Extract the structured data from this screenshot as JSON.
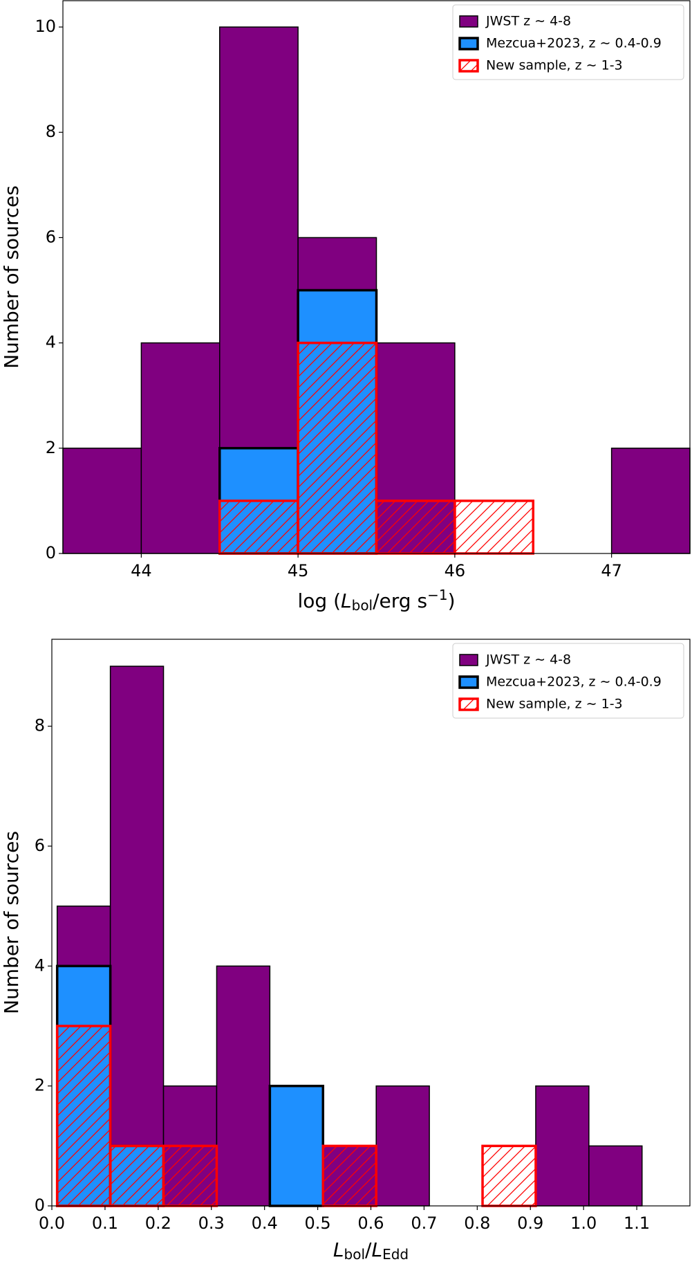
{
  "chart_data": [
    {
      "type": "histogram",
      "xlabel": [
        "log (",
        "L",
        "bol",
        "/erg s",
        "−1",
        ")"
      ],
      "ylabel": "Number of sources",
      "xlim": [
        43.5,
        47.5
      ],
      "ylim": [
        0,
        10.5
      ],
      "xticks": [
        44,
        45,
        46,
        47
      ],
      "yticks": [
        0,
        2,
        4,
        6,
        8,
        10
      ],
      "legend": "upper right",
      "series": [
        {
          "name": "JWST z ∼ 4-8",
          "color": "#800080",
          "edgecolor": "#000000",
          "hatch": false,
          "bins": [
            43.5,
            44,
            44.5,
            45,
            45.5,
            46,
            46.5,
            47,
            47.5
          ],
          "values": [
            2,
            4,
            10,
            6,
            4,
            0,
            0,
            2
          ]
        },
        {
          "name": "Mezcua+2023, z ∼ 0.4-0.9",
          "color": "#1e90ff",
          "edgecolor": "#000000",
          "hatch": false,
          "bins": [
            44.5,
            45,
            45.5
          ],
          "values": [
            2,
            5
          ]
        },
        {
          "name": "New sample, z ∼ 1-3",
          "color": "#ff0000",
          "edgecolor": "#ff0000",
          "hatch": true,
          "bins": [
            44.5,
            45,
            45.5,
            46,
            46.5,
            47
          ],
          "values": [
            1,
            4,
            1,
            1,
            0
          ]
        }
      ]
    },
    {
      "type": "histogram",
      "xlabel": [
        "L",
        "bol",
        "/",
        "L",
        "Edd"
      ],
      "ylabel": "Number of sources",
      "xlim": [
        0,
        1.2
      ],
      "ylim": [
        0,
        9.45
      ],
      "xticks": [
        {
          "value": 0,
          "label": "0.0"
        },
        0.1,
        0.2,
        0.3,
        0.4,
        0.5,
        0.6,
        0.7,
        0.8,
        0.9,
        {
          "value": 1,
          "label": "1.0"
        },
        1.1
      ],
      "yticks": [
        0,
        2,
        4,
        6,
        8
      ],
      "legend": "upper right",
      "series": [
        {
          "name": "JWST z ∼ 4-8",
          "color": "#800080",
          "edgecolor": "#000000",
          "hatch": false,
          "bins": [
            0.01,
            0.11,
            0.21,
            0.31,
            0.41,
            0.51,
            0.61,
            0.71,
            0.81,
            0.91,
            1.01,
            1.11
          ],
          "values": [
            5,
            9,
            2,
            4,
            0,
            1,
            2,
            0,
            0,
            2,
            1
          ]
        },
        {
          "name": "Mezcua+2023, z ∼ 0.4-0.9",
          "color": "#1e90ff",
          "edgecolor": "#000000",
          "hatch": false,
          "bins": [
            0.01,
            0.11,
            0.21,
            0.31,
            0.41,
            0.51
          ],
          "values": [
            4,
            1,
            0,
            0,
            2
          ]
        },
        {
          "name": "New sample, z ∼ 1-3",
          "color": "#ff0000",
          "edgecolor": "#ff0000",
          "hatch": true,
          "bins": [
            0.01,
            0.11,
            0.21,
            0.31,
            0.41,
            0.51,
            0.61,
            0.71,
            0.81,
            0.91
          ],
          "values": [
            3,
            1,
            1,
            0,
            0,
            1,
            0,
            0,
            1
          ]
        }
      ]
    }
  ]
}
